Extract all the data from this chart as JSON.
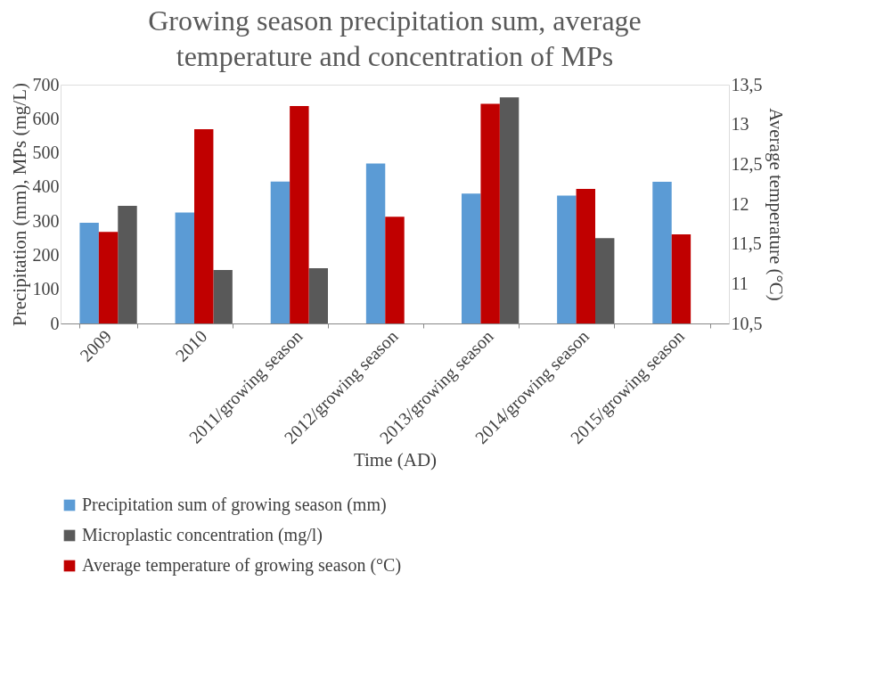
{
  "chart_data": {
    "type": "bar",
    "title": "Growing season precipitation sum, average temperature and concentration of MPs",
    "xlabel": "Time (AD)",
    "ylabel": "Precipitation (mm), MPs (mg/L)",
    "y2label": "Average temperature (°C)",
    "categories": [
      "2009",
      "2010",
      "2011/growing season",
      "2012/growing season",
      "2013/growing season",
      "2014/growing season",
      "2015/growing season"
    ],
    "series": [
      {
        "name": "Precipitation sum of growing season (mm)",
        "color": "#5b9bd5",
        "values": [
          295,
          325,
          416,
          469,
          381,
          375,
          415
        ]
      },
      {
        "name": "Average temperature of growing season (°C)",
        "color": "#c00000",
        "axis": "y2",
        "values": [
          11.65,
          12.94,
          13.23,
          11.84,
          13.26,
          12.19,
          11.62
        ]
      },
      {
        "name": "Microplastic concentration (mg/l)",
        "color": "#595959",
        "values": [
          345,
          157,
          162,
          0,
          663,
          250,
          0
        ]
      }
    ],
    "ylim": [
      0,
      700
    ],
    "yticks": [
      0,
      100,
      200,
      300,
      400,
      500,
      600,
      700
    ],
    "y2lim": [
      10.5,
      13.5
    ],
    "y2ticks": [
      {
        "value": 10.5,
        "label": "10,5"
      },
      11,
      {
        "value": 11.5,
        "label": "11,5"
      },
      12,
      {
        "value": 12.5,
        "label": "12,5"
      },
      13,
      {
        "value": 13.5,
        "label": "13,5"
      }
    ],
    "grid": false,
    "legend": "bottom"
  }
}
